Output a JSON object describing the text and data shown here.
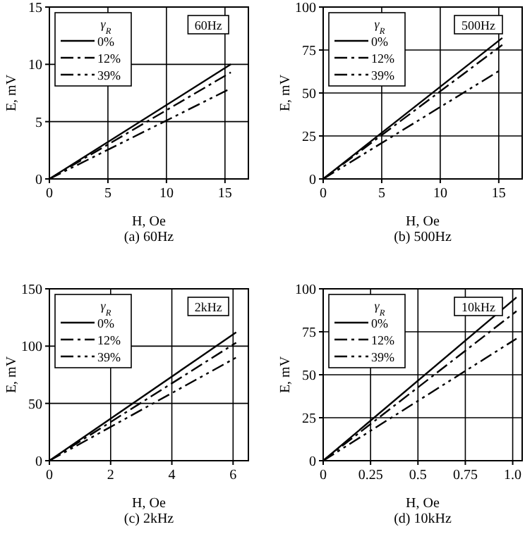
{
  "chart_data": [
    {
      "type": "line",
      "title": "(a) 60Hz",
      "xlabel": "H, Oe",
      "ylabel": "E, mV",
      "legend_title": "γ$_{R}$",
      "annotations": [
        "60Hz"
      ],
      "xlim": [
        0,
        17
      ],
      "xticks": [
        0,
        5,
        10,
        15
      ],
      "ylim": [
        0,
        15
      ],
      "yticks": [
        0,
        5,
        10,
        15
      ],
      "grid": true,
      "legend": "top left",
      "x": [
        0,
        15.5
      ],
      "series": [
        {
          "name": "0%",
          "color": "#000000",
          "line_style": "solid",
          "values": [
            0,
            10
          ]
        },
        {
          "name": "12%",
          "color": "#000000",
          "line_style": "dashed",
          "values": [
            0,
            9.3
          ]
        },
        {
          "name": "39%",
          "color": "#000000",
          "line_style": "dotted",
          "values": [
            0,
            7.9
          ]
        }
      ]
    },
    {
      "type": "line",
      "title": "(b) 500Hz",
      "xlabel": "H, Oe",
      "ylabel": "E, mV",
      "legend_title": "γ$_{R}$",
      "annotations": [
        "500Hz"
      ],
      "xlim": [
        0,
        17
      ],
      "xticks": [
        0,
        5,
        10,
        15
      ],
      "ylim": [
        0,
        100
      ],
      "yticks": [
        0,
        25,
        50,
        75,
        100
      ],
      "grid": true,
      "legend": "top left",
      "x": [
        0,
        15.3
      ],
      "series": [
        {
          "name": "0%",
          "color": "#000000",
          "line_style": "solid",
          "values": [
            0,
            82
          ]
        },
        {
          "name": "12%",
          "color": "#000000",
          "line_style": "dashed",
          "values": [
            0,
            78
          ]
        },
        {
          "name": "39%",
          "color": "#000000",
          "line_style": "dotted",
          "values": [
            0,
            64
          ]
        }
      ]
    },
    {
      "type": "line",
      "title": "(c) 2kHz",
      "xlabel": "H, Oe",
      "ylabel": "E, mV",
      "legend_title": "γ$_{R}$",
      "annotations": [
        "2kHz"
      ],
      "xlim": [
        0,
        6.5
      ],
      "xticks": [
        0,
        2,
        4,
        6
      ],
      "ylim": [
        0,
        150
      ],
      "yticks": [
        0,
        50,
        100,
        150
      ],
      "grid": true,
      "legend": "top left",
      "x": [
        0,
        6.1
      ],
      "series": [
        {
          "name": "0%",
          "color": "#000000",
          "line_style": "solid",
          "values": [
            0,
            112
          ]
        },
        {
          "name": "12%",
          "color": "#000000",
          "line_style": "dashed",
          "values": [
            0,
            103
          ]
        },
        {
          "name": "39%",
          "color": "#000000",
          "line_style": "dotted",
          "values": [
            0,
            90
          ]
        }
      ]
    },
    {
      "type": "line",
      "title": "(d) 10kHz",
      "xlabel": "H, Oe",
      "ylabel": "E, mV",
      "legend_title": "γ$_{R}$",
      "annotations": [
        "10kHz"
      ],
      "xlim": [
        0,
        1.05
      ],
      "xticks": [
        0,
        0.25,
        0.5,
        0.75,
        {
          "value": 1,
          "label": "1.0"
        }
      ],
      "ylim": [
        0,
        100
      ],
      "yticks": [
        0,
        25,
        50,
        75,
        100
      ],
      "grid": true,
      "legend": "top left",
      "x": [
        0,
        1.02
      ],
      "series": [
        {
          "name": "0%",
          "color": "#000000",
          "line_style": "solid",
          "values": [
            0,
            95
          ]
        },
        {
          "name": "12%",
          "color": "#000000",
          "line_style": "dashed",
          "values": [
            0,
            87
          ]
        },
        {
          "name": "39%",
          "color": "#000000",
          "line_style": "dotted",
          "values": [
            0,
            71
          ]
        }
      ]
    }
  ]
}
